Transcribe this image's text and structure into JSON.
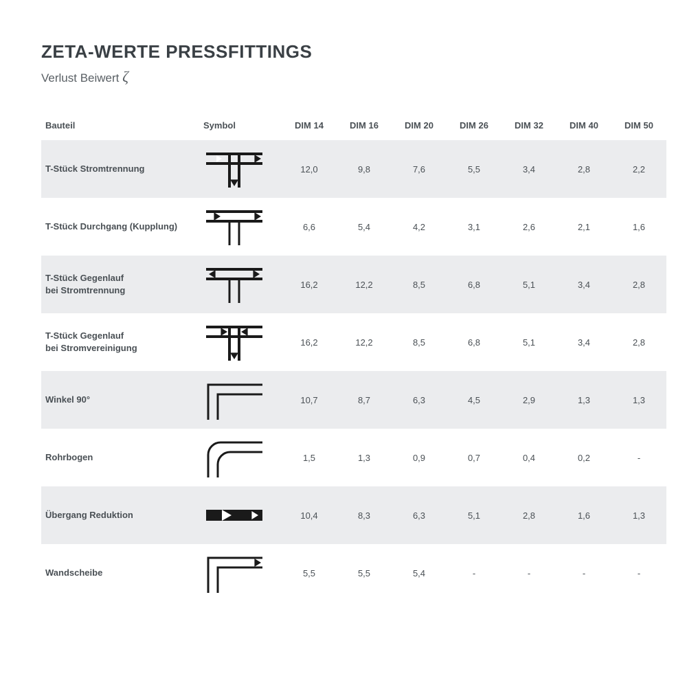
{
  "title": "ZETA-WERTE PRESSFITTINGS",
  "subtitle_prefix": "Verlust Beiwert ",
  "subtitle_symbol": "ζ",
  "columns": {
    "bauteil": "Bauteil",
    "symbol": "Symbol",
    "dims": [
      "DIM 14",
      "DIM 16",
      "DIM 20",
      "DIM 26",
      "DIM 32",
      "DIM 40",
      "DIM 50"
    ]
  },
  "rows": [
    {
      "label": "T-Stück Stromtrennung",
      "symbol": "tee-split",
      "values": [
        "12,0",
        "9,8",
        "7,6",
        "5,5",
        "3,4",
        "2,8",
        "2,2"
      ]
    },
    {
      "label": "T-Stück Durchgang (Kupplung)",
      "symbol": "tee-through",
      "values": [
        "6,6",
        "5,4",
        "4,2",
        "3,1",
        "2,6",
        "2,1",
        "1,6"
      ]
    },
    {
      "label": "T-Stück Gegenlauf\nbei Stromtrennung",
      "symbol": "tee-counter-split",
      "values": [
        "16,2",
        "12,2",
        "8,5",
        "6,8",
        "5,1",
        "3,4",
        "2,8"
      ]
    },
    {
      "label": "T-Stück Gegenlauf\nbei Stromvereinigung",
      "symbol": "tee-counter-merge",
      "values": [
        "16,2",
        "12,2",
        "8,5",
        "6,8",
        "5,1",
        "3,4",
        "2,8"
      ]
    },
    {
      "label": "Winkel 90°",
      "symbol": "elbow-sharp",
      "values": [
        "10,7",
        "8,7",
        "6,3",
        "4,5",
        "2,9",
        "1,3",
        "1,3"
      ]
    },
    {
      "label": "Rohrbogen",
      "symbol": "elbow-round",
      "values": [
        "1,5",
        "1,3",
        "0,9",
        "0,7",
        "0,4",
        "0,2",
        "-"
      ]
    },
    {
      "label": "Übergang Reduktion",
      "symbol": "reducer",
      "values": [
        "10,4",
        "8,3",
        "6,3",
        "5,1",
        "2,8",
        "1,6",
        "1,3"
      ]
    },
    {
      "label": "Wandscheibe",
      "symbol": "wall-elbow",
      "values": [
        "5,5",
        "5,5",
        "5,4",
        "-",
        "-",
        "-",
        "-"
      ]
    }
  ],
  "style": {
    "band_odd": "#ebecee",
    "band_even": "#ffffff",
    "text_color": "#4a5055",
    "title_color": "#3a4045",
    "symbol_stroke": "#1a1a1a",
    "symbol_width": 90,
    "symbol_height": 62,
    "title_fontsize": 26,
    "subtitle_fontsize": 17,
    "header_fontsize": 13,
    "cell_fontsize": 13
  }
}
